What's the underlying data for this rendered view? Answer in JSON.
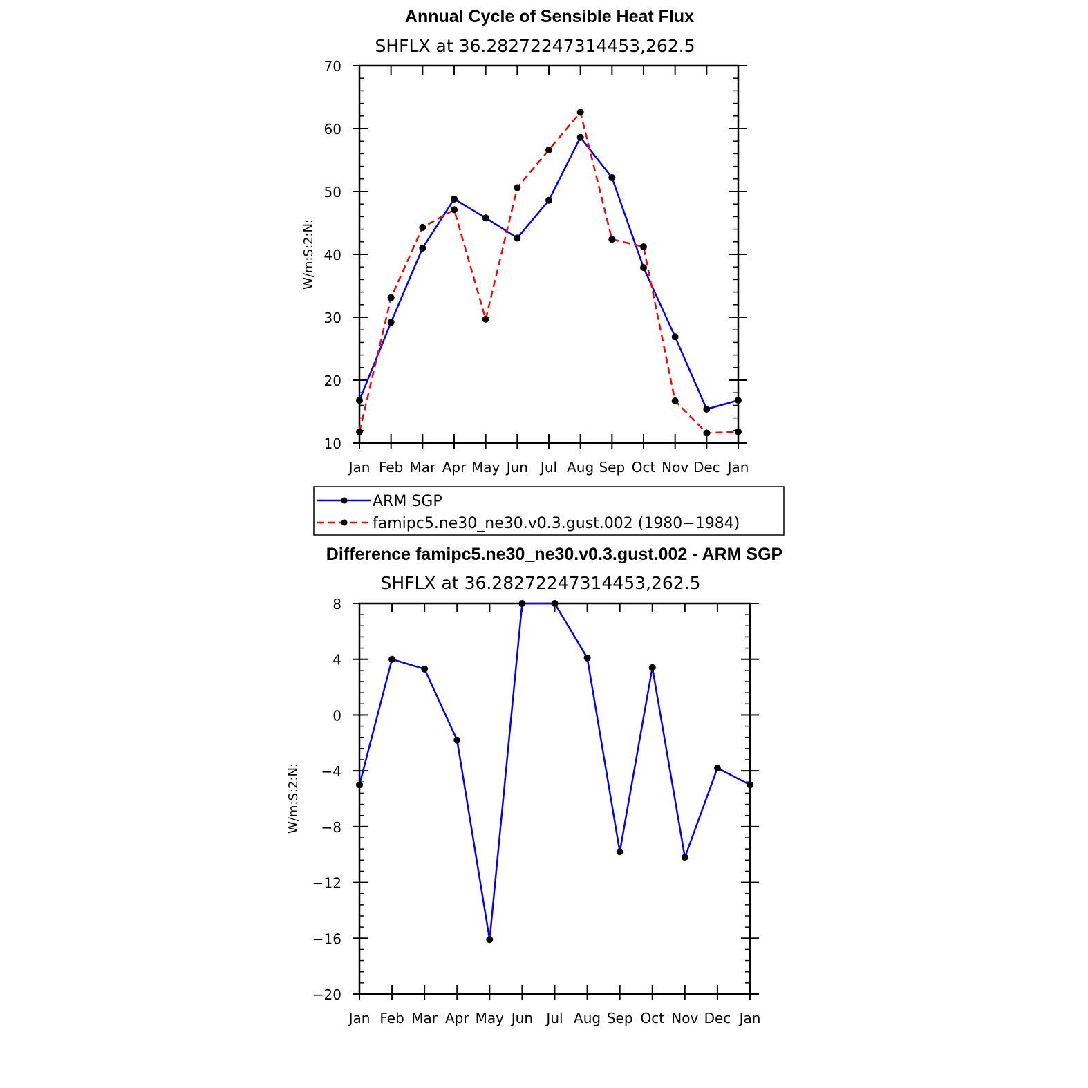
{
  "chart_data": [
    {
      "type": "line",
      "title": "Annual Cycle of Sensible Heat Flux",
      "subtitle": "SHFLX  at  36.28272247314453,262.5",
      "ylabel": "W/m:S:2:N:",
      "categories": [
        "Jan",
        "Feb",
        "Mar",
        "Apr",
        "May",
        "Jun",
        "Jul",
        "Aug",
        "Sep",
        "Oct",
        "Nov",
        "Dec",
        "Jan"
      ],
      "ylim": [
        10,
        70
      ],
      "yticks": [
        10,
        20,
        30,
        40,
        50,
        60,
        70
      ],
      "series": [
        {
          "name": "ARM SGP",
          "color": "#0000ff",
          "style": "solid",
          "values": [
            16.8,
            29.2,
            41.0,
            48.8,
            45.8,
            42.6,
            48.6,
            58.6,
            52.2,
            37.9,
            26.9,
            15.4,
            16.8
          ]
        },
        {
          "name": "famipc5.ne30_ne30.v0.3.gust.002 (1980−1984)",
          "color": "#ff0000",
          "style": "dashed",
          "values": [
            11.8,
            33.1,
            44.3,
            47.1,
            29.7,
            50.6,
            56.6,
            62.6,
            42.4,
            41.2,
            16.7,
            11.6,
            11.8
          ]
        }
      ],
      "legend": "below"
    },
    {
      "type": "line",
      "title": "Difference famipc5.ne30_ne30.v0.3.gust.002 - ARM SGP",
      "subtitle": "SHFLX  at  36.28272247314453,262.5",
      "ylabel": "W/m:S:2:N:",
      "categories": [
        "Jan",
        "Feb",
        "Mar",
        "Apr",
        "May",
        "Jun",
        "Jul",
        "Aug",
        "Sep",
        "Oct",
        "Nov",
        "Dec",
        "Jan"
      ],
      "ylim": [
        -20,
        8
      ],
      "yticks": [
        "8",
        "4",
        "0",
        "−4",
        "−8",
        "−12",
        "−16",
        "−20"
      ],
      "series": [
        {
          "color": "#0000ff",
          "style": "solid",
          "values": [
            -5.0,
            4.0,
            3.3,
            -1.8,
            -16.1,
            8.0,
            8.0,
            4.1,
            -9.8,
            3.4,
            -10.2,
            -3.8,
            -5.0
          ]
        }
      ]
    }
  ]
}
